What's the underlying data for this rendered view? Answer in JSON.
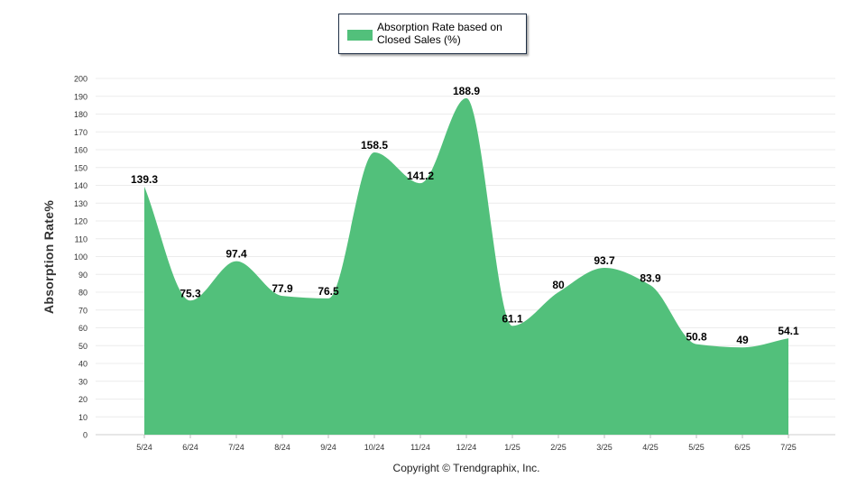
{
  "chart_data": {
    "type": "area",
    "title": "",
    "xlabel": "",
    "ylabel": "Absorption Rate%",
    "ylim": [
      0,
      200
    ],
    "ytick_step": 10,
    "grid": true,
    "legend_placement": "top-center",
    "categories": [
      "5/24",
      "6/24",
      "7/24",
      "8/24",
      "9/24",
      "10/24",
      "11/24",
      "12/24",
      "1/25",
      "2/25",
      "3/25",
      "4/25",
      "5/25",
      "6/25",
      "7/25"
    ],
    "series": [
      {
        "name": "Absorption Rate based on Closed Sales (%)",
        "color": "#52c07b",
        "values": [
          139.3,
          75.3,
          97.4,
          77.9,
          76.5,
          158.5,
          141.2,
          188.9,
          61.1,
          80,
          93.7,
          83.9,
          50.8,
          49,
          54.1
        ]
      }
    ]
  },
  "legend": {
    "label": "Absorption Rate based on Closed Sales (%)",
    "color": "#52c07b"
  },
  "footer": {
    "copyright": "Copyright © Trendgraphix, Inc."
  }
}
